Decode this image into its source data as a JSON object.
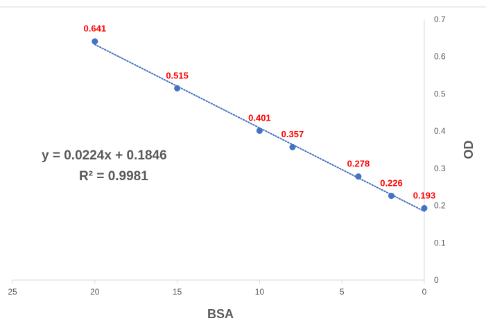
{
  "chart_data": {
    "type": "scatter",
    "xlabel": "BSA",
    "ylabel": "OD",
    "xlim": [
      25,
      0
    ],
    "ylim": [
      0,
      0.7
    ],
    "x_reversed": true,
    "y_axis_position": "right",
    "grid": false,
    "x_ticks": [
      "25",
      "20",
      "15",
      "10",
      "5",
      "0"
    ],
    "y_ticks": [
      "0",
      "0.1",
      "0.2",
      "0.3",
      "0.4",
      "0.5",
      "0.6",
      "0.7"
    ],
    "series": [
      {
        "x": [
          20,
          15,
          10,
          8,
          4,
          2,
          0
        ],
        "y": [
          0.641,
          0.515,
          0.401,
          0.357,
          0.278,
          0.226,
          0.193
        ],
        "labels": [
          "0.641",
          "0.515",
          "0.401",
          "0.357",
          "0.278",
          "0.226",
          "0.193"
        ],
        "color": "#4472c4",
        "label_color": "#ff0000"
      }
    ],
    "trendline": {
      "type": "linear",
      "slope": 0.0224,
      "intercept": 0.1846,
      "style": "dotted",
      "color": "#4472c4",
      "x_range": [
        20,
        0
      ]
    },
    "annotations": [
      "y = 0.0224x + 0.1846",
      "R² = 0.9981"
    ]
  }
}
